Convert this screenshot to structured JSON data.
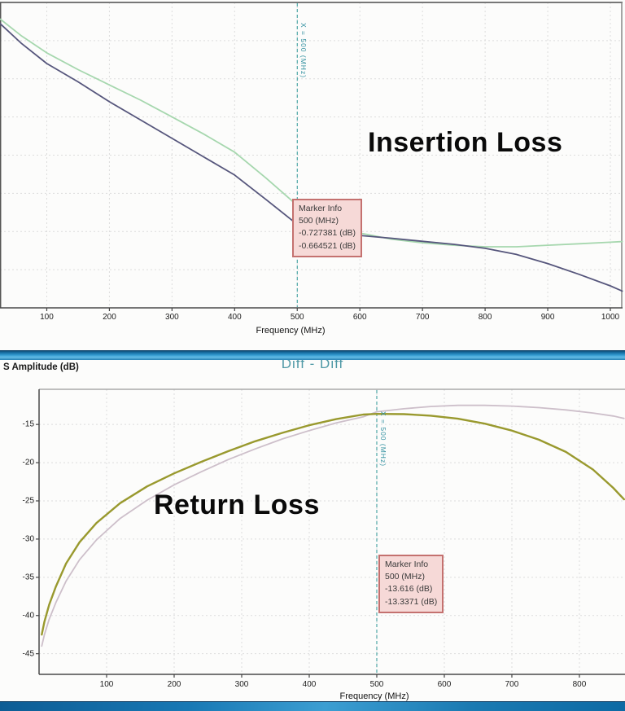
{
  "colors": {
    "marker_line": "#2e9898",
    "marker_box_bg": "#f6d9d7",
    "marker_box_border": "#c4716f",
    "grid": "#dcdcdc",
    "divider_blue": "#2f96cc",
    "diff_title_color": "#4f99a6"
  },
  "chart_data": [
    {
      "id": "insertion_loss",
      "type": "line",
      "annotation": "Insertion Loss",
      "xlabel": "Frequency (MHz)",
      "xticks": [
        100,
        200,
        300,
        400,
        500,
        600,
        700,
        800,
        900,
        1000
      ],
      "xlim": [
        25.3,
        1019.5
      ],
      "ylim": [
        -1.0,
        0
      ],
      "ygrid": [
        -0.125,
        -0.25,
        -0.375,
        -0.5,
        -0.625,
        -0.75,
        -0.875
      ],
      "grid_on": true,
      "grid_color": "#dcdcdc",
      "legend": "none",
      "marker": {
        "x": 500,
        "color": "#2e9898",
        "rotated_label": "X = 500 (MHz)",
        "box": [
          "Marker Info",
          "500 (MHz)",
          "-0.727381 (dB)",
          "-0.664521 (dB)"
        ]
      },
      "series": [
        {
          "name": "trace-green",
          "color": "#a6d7ae",
          "width": 1.8,
          "x": [
            26,
            60,
            100,
            150,
            200,
            250,
            300,
            350,
            400,
            450,
            500,
            550,
            600,
            650,
            700,
            750,
            800,
            850,
            900,
            950,
            1000,
            1019
          ],
          "y": [
            -0.055,
            -0.11,
            -0.165,
            -0.22,
            -0.27,
            -0.32,
            -0.375,
            -0.43,
            -0.49,
            -0.575,
            -0.6645,
            -0.72,
            -0.755,
            -0.775,
            -0.787,
            -0.795,
            -0.8,
            -0.8,
            -0.795,
            -0.79,
            -0.785,
            -0.783
          ]
        },
        {
          "name": "trace-navy",
          "color": "#56567c",
          "width": 1.8,
          "x": [
            26,
            60,
            100,
            150,
            200,
            250,
            300,
            350,
            400,
            450,
            500,
            550,
            600,
            650,
            700,
            750,
            800,
            850,
            900,
            950,
            1000,
            1019
          ],
          "y": [
            -0.07,
            -0.135,
            -0.2,
            -0.26,
            -0.325,
            -0.385,
            -0.445,
            -0.505,
            -0.565,
            -0.645,
            -0.727,
            -0.75,
            -0.763,
            -0.772,
            -0.782,
            -0.792,
            -0.805,
            -0.825,
            -0.855,
            -0.89,
            -0.928,
            -0.945
          ]
        }
      ]
    },
    {
      "id": "return_loss",
      "type": "line",
      "title": "Diff - Diff",
      "ylabel": "S Amplitude (dB)",
      "annotation": "Return Loss",
      "xlabel": "Frequency (MHz)",
      "xticks": [
        100,
        200,
        300,
        400,
        500,
        600,
        700,
        800
      ],
      "yticks": [
        -15,
        -20,
        -25,
        -30,
        -35,
        -40,
        -45
      ],
      "ygrid": [
        -15,
        -20,
        -25,
        -30,
        -35,
        -40,
        -45
      ],
      "xlim": [
        0,
        867.5
      ],
      "ylim": [
        -47.7,
        -10.4
      ],
      "grid_on": true,
      "grid_color": "#dcdcdc",
      "legend": "none",
      "marker": {
        "x": 500,
        "color": "#2e9898",
        "rotated_label": "X = 500 (MHz)",
        "box": [
          "Marker Info",
          "500 (MHz)",
          "-13.616 (dB)",
          "-13.3371 (dB)"
        ]
      },
      "series": [
        {
          "name": "trace-mauve",
          "color": "#cdbfca",
          "width": 1.8,
          "x": [
            4,
            8,
            15,
            25,
            40,
            60,
            85,
            120,
            160,
            200,
            240,
            280,
            320,
            360,
            400,
            440,
            480,
            500,
            540,
            580,
            620,
            660,
            700,
            740,
            780,
            820,
            850,
            866
          ],
          "y": [
            -44.0,
            -42.5,
            -40.5,
            -38.3,
            -35.5,
            -32.7,
            -30.1,
            -27.3,
            -24.9,
            -22.9,
            -21.2,
            -19.6,
            -18.2,
            -16.9,
            -15.8,
            -14.8,
            -14.0,
            -13.3371,
            -12.95,
            -12.65,
            -12.5,
            -12.5,
            -12.6,
            -12.8,
            -13.1,
            -13.5,
            -13.9,
            -14.2
          ]
        },
        {
          "name": "trace-olive",
          "color": "#99992e",
          "width": 2.4,
          "x": [
            4,
            8,
            15,
            25,
            40,
            60,
            85,
            120,
            160,
            200,
            240,
            280,
            320,
            360,
            400,
            440,
            480,
            500,
            540,
            580,
            620,
            660,
            700,
            740,
            780,
            820,
            850,
            866
          ],
          "y": [
            -42.5,
            -40.8,
            -38.6,
            -36.2,
            -33.2,
            -30.4,
            -27.9,
            -25.3,
            -23.1,
            -21.4,
            -19.9,
            -18.5,
            -17.2,
            -16.1,
            -15.1,
            -14.3,
            -13.7,
            -13.616,
            -13.65,
            -13.85,
            -14.25,
            -14.9,
            -15.8,
            -17.0,
            -18.6,
            -20.9,
            -23.3,
            -24.8
          ]
        }
      ]
    }
  ]
}
